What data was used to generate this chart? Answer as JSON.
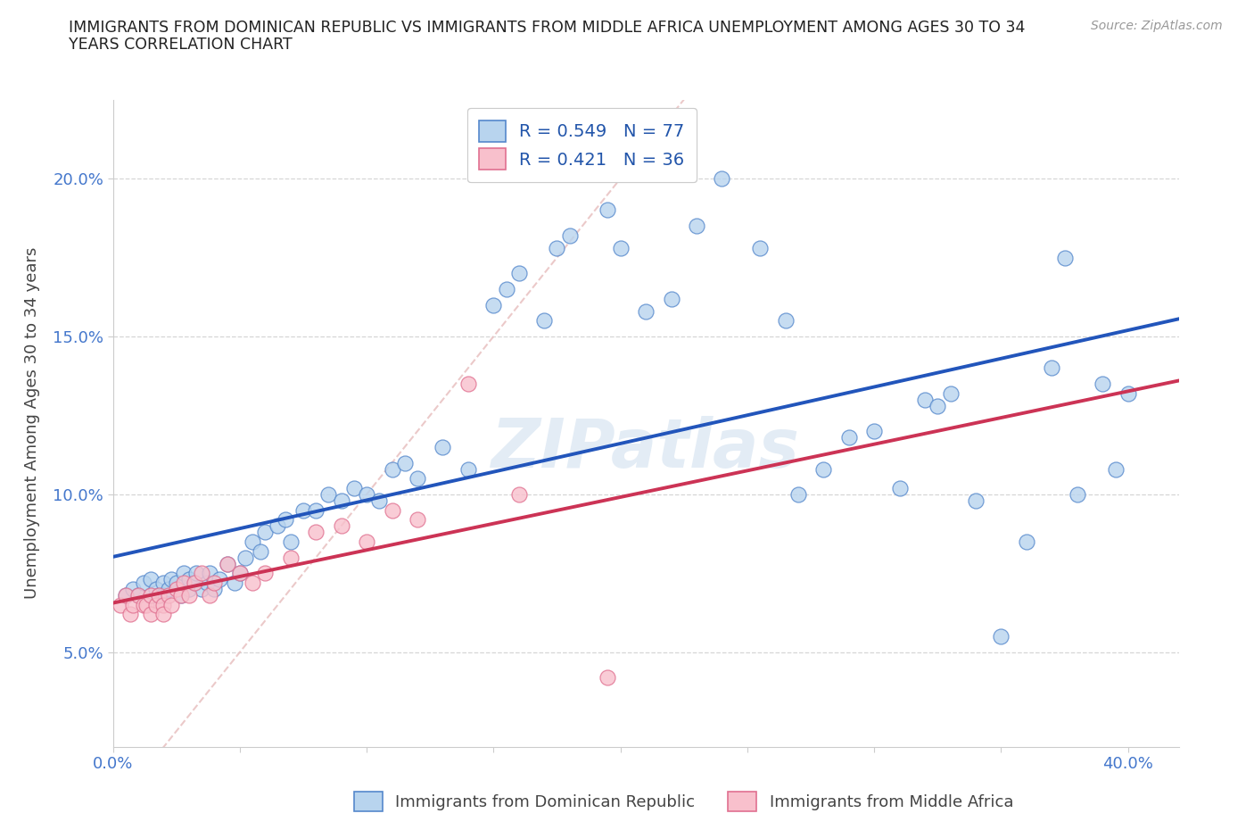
{
  "title_line1": "IMMIGRANTS FROM DOMINICAN REPUBLIC VS IMMIGRANTS FROM MIDDLE AFRICA UNEMPLOYMENT AMONG AGES 30 TO 34",
  "title_line2": "YEARS CORRELATION CHART",
  "source": "Source: ZipAtlas.com",
  "ylabel_label": "Unemployment Among Ages 30 to 34 years",
  "xlim": [
    0.0,
    0.42
  ],
  "ylim": [
    0.02,
    0.225
  ],
  "xticks": [
    0.0,
    0.05,
    0.1,
    0.15,
    0.2,
    0.25,
    0.3,
    0.35,
    0.4
  ],
  "yticks": [
    0.05,
    0.1,
    0.15,
    0.2
  ],
  "r_blue": 0.549,
  "n_blue": 77,
  "r_pink": 0.421,
  "n_pink": 36,
  "color_blue_fill": "#b8d4ee",
  "color_blue_edge": "#5588cc",
  "color_pink_fill": "#f8c0cc",
  "color_pink_edge": "#e07090",
  "color_blue_line": "#2255bb",
  "color_pink_line": "#cc3355",
  "color_diag": "#e8c0c0",
  "legend_label_blue": "Immigrants from Dominican Republic",
  "legend_label_pink": "Immigrants from Middle Africa",
  "watermark": "ZIPatlas",
  "blue_x": [
    0.005,
    0.008,
    0.01,
    0.012,
    0.015,
    0.015,
    0.017,
    0.018,
    0.02,
    0.02,
    0.022,
    0.023,
    0.025,
    0.027,
    0.028,
    0.03,
    0.03,
    0.032,
    0.033,
    0.035,
    0.037,
    0.038,
    0.04,
    0.042,
    0.045,
    0.048,
    0.05,
    0.052,
    0.055,
    0.058,
    0.06,
    0.065,
    0.068,
    0.07,
    0.075,
    0.08,
    0.085,
    0.09,
    0.095,
    0.1,
    0.105,
    0.11,
    0.115,
    0.12,
    0.13,
    0.14,
    0.15,
    0.155,
    0.16,
    0.17,
    0.175,
    0.18,
    0.195,
    0.2,
    0.21,
    0.22,
    0.23,
    0.24,
    0.255,
    0.265,
    0.27,
    0.28,
    0.29,
    0.3,
    0.31,
    0.32,
    0.325,
    0.33,
    0.34,
    0.35,
    0.36,
    0.37,
    0.375,
    0.38,
    0.39,
    0.395,
    0.4
  ],
  "blue_y": [
    0.068,
    0.07,
    0.068,
    0.072,
    0.068,
    0.073,
    0.07,
    0.068,
    0.072,
    0.068,
    0.07,
    0.073,
    0.072,
    0.068,
    0.075,
    0.07,
    0.073,
    0.072,
    0.075,
    0.07,
    0.072,
    0.075,
    0.07,
    0.073,
    0.078,
    0.072,
    0.075,
    0.08,
    0.085,
    0.082,
    0.088,
    0.09,
    0.092,
    0.085,
    0.095,
    0.095,
    0.1,
    0.098,
    0.102,
    0.1,
    0.098,
    0.108,
    0.11,
    0.105,
    0.115,
    0.108,
    0.16,
    0.165,
    0.17,
    0.155,
    0.178,
    0.182,
    0.19,
    0.178,
    0.158,
    0.162,
    0.185,
    0.2,
    0.178,
    0.155,
    0.1,
    0.108,
    0.118,
    0.12,
    0.102,
    0.13,
    0.128,
    0.132,
    0.098,
    0.055,
    0.085,
    0.14,
    0.175,
    0.1,
    0.135,
    0.108,
    0.132
  ],
  "pink_x": [
    0.003,
    0.005,
    0.007,
    0.008,
    0.01,
    0.012,
    0.013,
    0.015,
    0.015,
    0.017,
    0.018,
    0.02,
    0.02,
    0.022,
    0.023,
    0.025,
    0.027,
    0.028,
    0.03,
    0.032,
    0.035,
    0.038,
    0.04,
    0.045,
    0.05,
    0.055,
    0.06,
    0.07,
    0.08,
    0.09,
    0.1,
    0.11,
    0.12,
    0.14,
    0.16,
    0.195
  ],
  "pink_y": [
    0.065,
    0.068,
    0.062,
    0.065,
    0.068,
    0.065,
    0.065,
    0.068,
    0.062,
    0.065,
    0.068,
    0.065,
    0.062,
    0.068,
    0.065,
    0.07,
    0.068,
    0.072,
    0.068,
    0.072,
    0.075,
    0.068,
    0.072,
    0.078,
    0.075,
    0.072,
    0.075,
    0.08,
    0.088,
    0.09,
    0.085,
    0.095,
    0.092,
    0.135,
    0.1,
    0.042
  ]
}
